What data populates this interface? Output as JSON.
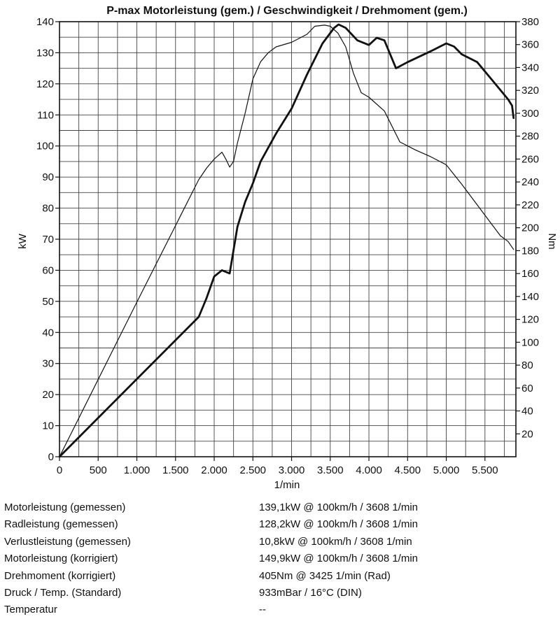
{
  "chart_data": {
    "type": "line",
    "title": "P-max Motorleistung (gem.) / Geschwindigkeit / Drehmoment (gem.)",
    "xlabel": "1/min",
    "ylabel": "kW",
    "y2label": "Nm",
    "xlim": [
      0,
      5900
    ],
    "ylim": [
      0,
      140
    ],
    "y2lim": [
      0,
      380
    ],
    "grid": true,
    "x_ticks": [
      0,
      500,
      1000,
      1500,
      2000,
      2500,
      3000,
      3500,
      4000,
      4500,
      5000,
      5500
    ],
    "x_tick_labels": [
      "0",
      "500",
      "1.000",
      "1.500",
      "2.000",
      "2.500",
      "3.000",
      "3.500",
      "4.000",
      "4.500",
      "5.000",
      "5.500"
    ],
    "y_ticks": [
      0,
      10,
      20,
      30,
      40,
      50,
      60,
      70,
      80,
      90,
      100,
      110,
      120,
      130,
      140
    ],
    "y_tick_labels": [
      "0",
      "10",
      "20",
      "30",
      "40",
      "50",
      "60",
      "70",
      "80",
      "90",
      "100",
      "110",
      "120",
      "130",
      "140"
    ],
    "y2_ticks": [
      20,
      40,
      60,
      80,
      100,
      120,
      140,
      160,
      180,
      200,
      220,
      240,
      260,
      280,
      300,
      320,
      340,
      360,
      380
    ],
    "y2_tick_labels": [
      "20",
      "40",
      "60",
      "80",
      "100",
      "120",
      "140",
      "160",
      "180",
      "200",
      "220",
      "240",
      "260",
      "280",
      "300",
      "320",
      "340",
      "360",
      "380"
    ],
    "series": [
      {
        "name": "Motorleistung (gem.)",
        "axis": "left",
        "unit": "kW",
        "style": "thick",
        "x": [
          0,
          1000,
          1800,
          1900,
          2000,
          2100,
          2200,
          2300,
          2400,
          2500,
          2600,
          2800,
          3000,
          3200,
          3400,
          3550,
          3608,
          3700,
          3850,
          4000,
          4100,
          4200,
          4350,
          4500,
          4800,
          5000,
          5100,
          5200,
          5400,
          5600,
          5800,
          5850,
          5870
        ],
        "y": [
          0,
          25,
          45,
          51,
          58,
          60,
          59,
          74,
          82,
          88,
          95,
          104,
          112,
          123,
          133,
          138,
          139.1,
          138,
          134,
          132.5,
          134.8,
          134,
          125,
          127,
          130.5,
          133,
          132,
          129.5,
          127,
          121,
          115,
          113,
          109
        ]
      },
      {
        "name": "Drehmoment (gem.)",
        "axis": "right",
        "unit": "Nm",
        "style": "thin",
        "x": [
          0,
          1000,
          1800,
          1900,
          2000,
          2100,
          2150,
          2200,
          2250,
          2300,
          2400,
          2500,
          2600,
          2700,
          2800,
          3000,
          3200,
          3300,
          3425,
          3500,
          3600,
          3700,
          3800,
          3900,
          4000,
          4200,
          4400,
          4600,
          4800,
          5000,
          5200,
          5400,
          5600,
          5700,
          5800,
          5870
        ],
        "y": [
          0,
          135,
          242,
          252,
          260,
          266,
          260,
          253,
          258,
          274,
          300,
          330,
          345,
          353,
          358,
          362,
          369,
          376,
          377,
          376,
          370,
          358,
          335,
          318,
          314,
          302,
          275,
          268,
          262,
          255,
          238,
          220,
          202,
          193,
          188,
          181
        ]
      }
    ]
  },
  "stats": [
    {
      "label": "Motorleistung (gemessen)",
      "value": "139,1kW @ 100km/h / 3608 1/min"
    },
    {
      "label": "Radleistung (gemessen)",
      "value": "128,2kW @ 100km/h / 3608 1/min"
    },
    {
      "label": "Verlustleistung (gemessen)",
      "value": "10,8kW @ 100km/h / 3608 1/min"
    },
    {
      "label": "Motorleistung (korrigiert)",
      "value": "149,9kW @ 100km/h / 3608 1/min"
    },
    {
      "label": "Drehmoment (korrigiert)",
      "value": "405Nm @ 3425 1/min (Rad)"
    },
    {
      "label": "Druck / Temp. (Standard)",
      "value": "933mBar / 16°C (DIN)"
    },
    {
      "label": "Temperatur",
      "value": "--"
    }
  ]
}
